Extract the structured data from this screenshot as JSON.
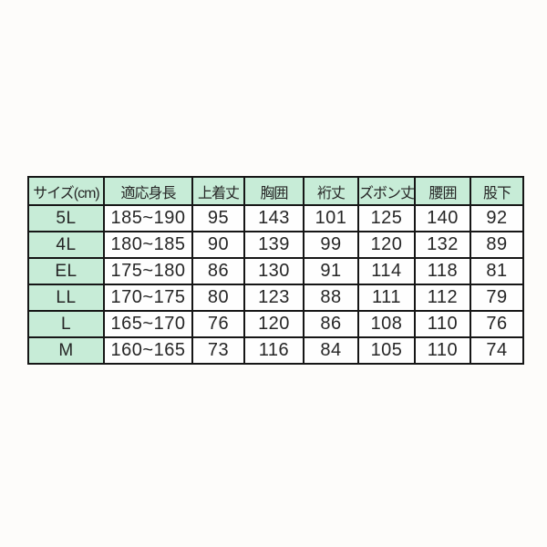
{
  "page": {
    "background_color": "#fdfcfa"
  },
  "table": {
    "header_bg_color": "#c7ecd7",
    "row_label_bg_color": "#c7ecd7",
    "border_color": "#161616",
    "columns": [
      "サイズ(cm)",
      "適応身長",
      "上着丈",
      "胸囲",
      "裄丈",
      "ズボン丈",
      "腰囲",
      "股下"
    ],
    "rows": [
      {
        "size": "5L",
        "cells": [
          "185~190",
          "95",
          "143",
          "101",
          "125",
          "140",
          "92"
        ]
      },
      {
        "size": "4L",
        "cells": [
          "180~185",
          "90",
          "139",
          "99",
          "120",
          "132",
          "89"
        ]
      },
      {
        "size": "EL",
        "cells": [
          "175~180",
          "86",
          "130",
          "91",
          "114",
          "118",
          "81"
        ]
      },
      {
        "size": "LL",
        "cells": [
          "170~175",
          "80",
          "123",
          "88",
          "111",
          "112",
          "79"
        ]
      },
      {
        "size": "L",
        "cells": [
          "165~170",
          "76",
          "120",
          "86",
          "108",
          "110",
          "76"
        ]
      },
      {
        "size": "M",
        "cells": [
          "160~165",
          "73",
          "116",
          "84",
          "105",
          "110",
          "74"
        ]
      }
    ]
  }
}
